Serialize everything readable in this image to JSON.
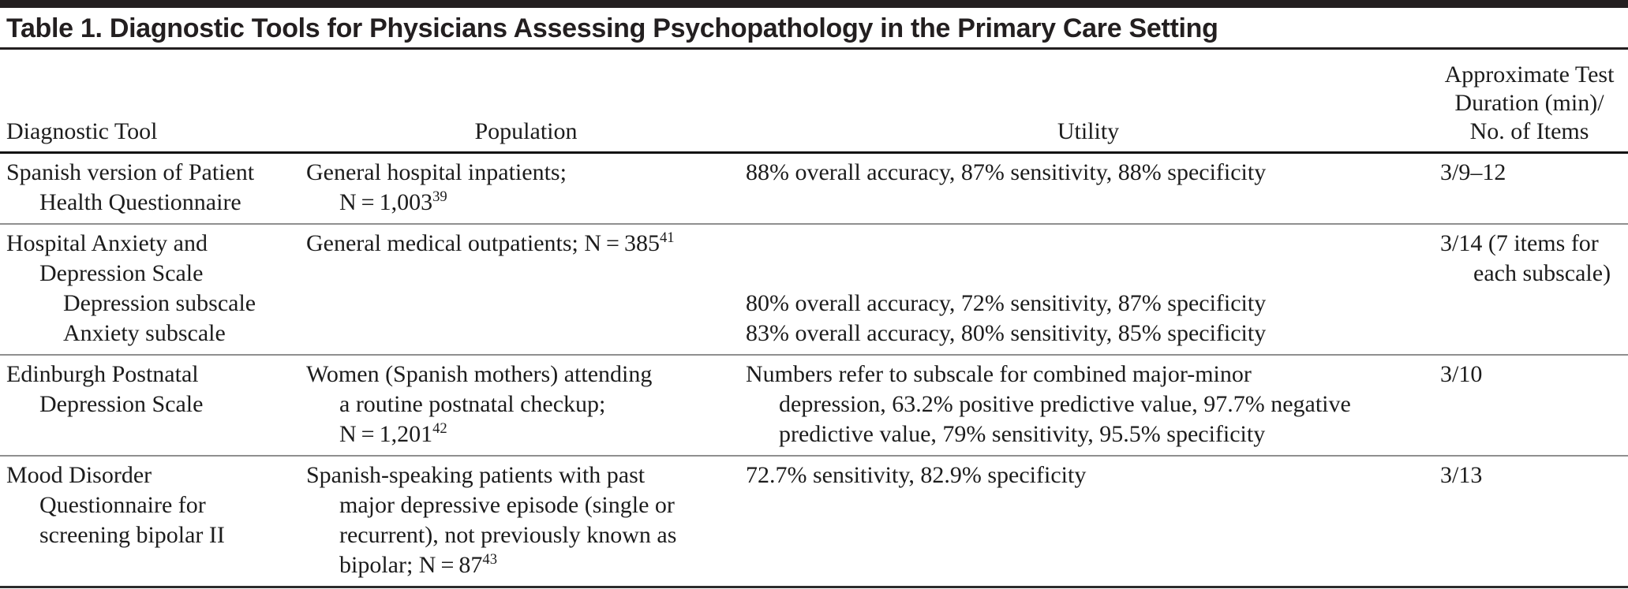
{
  "title": "Table 1. Diagnostic Tools for Physicians Assessing Psychopathology in the Primary Care Setting",
  "header": {
    "diagnostic_tool": "Diagnostic Tool",
    "population": "Population",
    "utility": "Utility",
    "duration_lines": [
      "Approximate Test",
      "Duration (min)/",
      "No. of Items"
    ]
  },
  "rows": [
    {
      "tool": [
        "Spanish version of Patient",
        "Health Questionnaire"
      ],
      "population": [
        "General hospital inpatients;",
        "N = 1,003"
      ],
      "population_ref": "39",
      "utility": [
        "88% overall accuracy, 87% sensitivity, 88% specificity"
      ],
      "duration": [
        "3/9–12"
      ]
    },
    {
      "tool": [
        "Hospital Anxiety and",
        "Depression Scale",
        "Depression subscale",
        "Anxiety subscale"
      ],
      "population": [
        "General medical outpatients; N = 385"
      ],
      "population_ref": "41",
      "utility": [
        "",
        "",
        "80% overall accuracy, 72% sensitivity, 87% specificity",
        "83% overall accuracy, 80% sensitivity, 85% specificity"
      ],
      "duration": [
        "3/14 (7 items for",
        "each subscale)"
      ]
    },
    {
      "tool": [
        "Edinburgh Postnatal",
        "Depression Scale"
      ],
      "population": [
        "Women (Spanish mothers) attending",
        "a routine postnatal checkup;",
        "N = 1,201"
      ],
      "population_ref": "42",
      "utility": [
        "Numbers refer to subscale for combined major-minor",
        "depression, 63.2% positive predictive value, 97.7% negative",
        "predictive value, 79% sensitivity, 95.5% specificity"
      ],
      "duration": [
        "3/10"
      ]
    },
    {
      "tool": [
        "Mood Disorder",
        "Questionnaire for",
        "screening bipolar II"
      ],
      "population": [
        "Spanish-speaking patients with past",
        "major depressive episode (single or",
        "recurrent), not previously known as",
        "bipolar; N = 87"
      ],
      "population_ref": "43",
      "utility": [
        "72.7% sensitivity, 82.9% specificity"
      ],
      "duration": [
        "3/13"
      ]
    }
  ]
}
